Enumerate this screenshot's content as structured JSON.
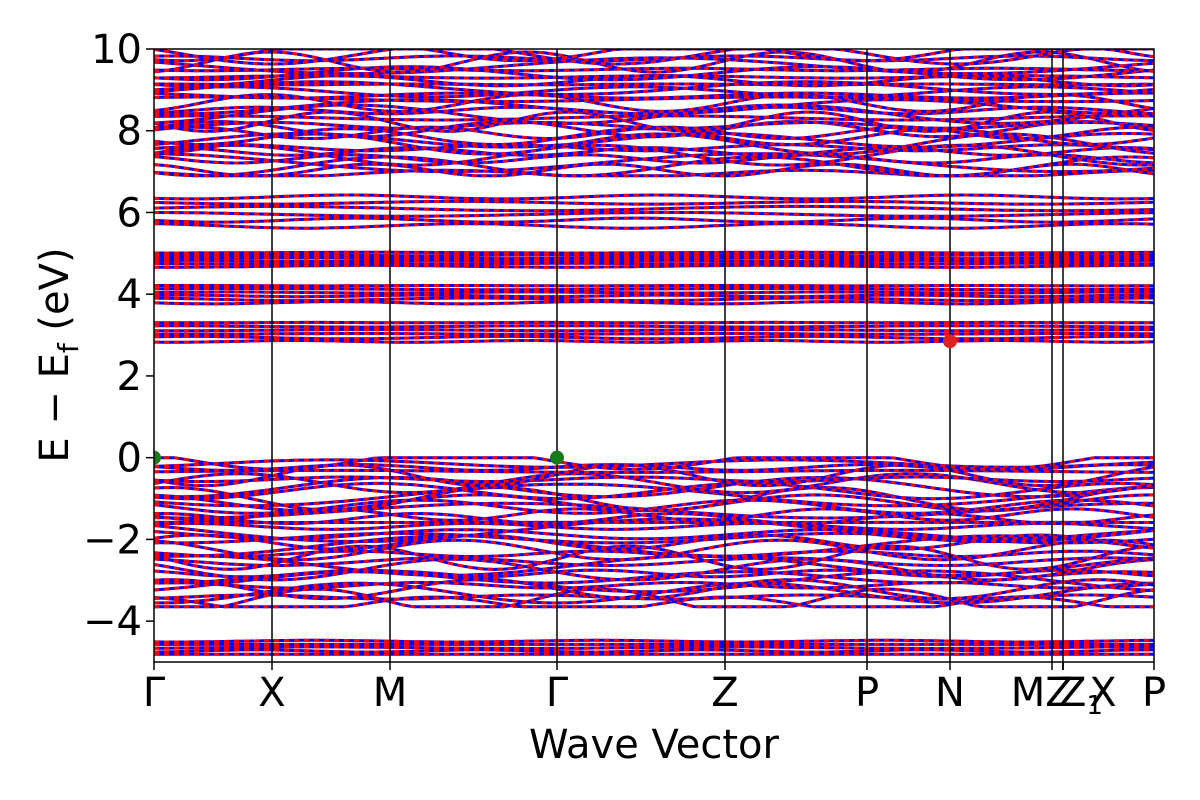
{
  "chart_data": {
    "type": "line",
    "title": "",
    "xlabel": "Wave Vector",
    "ylabel": "E − E",
    "ylabel_subscript": "f",
    "ylabel_unit": "(eV)",
    "ylim": [
      -5,
      10
    ],
    "yticks": [
      {
        "value": 10,
        "label": "10"
      },
      {
        "value": 8,
        "label": "8"
      },
      {
        "value": 6,
        "label": "6"
      },
      {
        "value": 4,
        "label": "4"
      },
      {
        "value": 2,
        "label": "2"
      },
      {
        "value": 0,
        "label": "0"
      },
      {
        "value": -2,
        "label": "−2"
      },
      {
        "value": -4,
        "label": "−4"
      }
    ],
    "kpoints": [
      {
        "label": "Γ",
        "x": 0.0
      },
      {
        "label": "X",
        "x": 0.118
      },
      {
        "label": "M",
        "x": 0.236
      },
      {
        "label": "Γ",
        "x": 0.403
      },
      {
        "label": "Z",
        "x": 0.571
      },
      {
        "label": "P",
        "x": 0.713
      },
      {
        "label": "N",
        "x": 0.796
      },
      {
        "label": "M",
        "x": 0.898
      },
      {
        "label": "Z",
        "x": 0.909
      },
      {
        "label": "Z1",
        "x": 0.909
      },
      {
        "label": "X",
        "x": 0.909
      },
      {
        "label": "P",
        "x": 1.0
      }
    ],
    "band_stripe_colors": [
      "#ff0000",
      "#0000ff"
    ],
    "vbm": [
      {
        "x": 0.0,
        "y": 0.0,
        "color": "#1a7a1a"
      },
      {
        "x": 0.403,
        "y": 0.0,
        "color": "#1a7a1a"
      }
    ],
    "cbm": {
      "x": 0.796,
      "y": 2.85,
      "color": "#dd2222"
    },
    "band_groups": [
      {
        "name": "valence",
        "ymin": -3.65,
        "ymax": 0.0
      },
      {
        "name": "deep",
        "ymin": -4.85,
        "ymax": -4.45
      },
      {
        "name": "cond1",
        "ymin": 2.8,
        "ymax": 3.35
      },
      {
        "name": "cond2",
        "ymin": 3.75,
        "ymax": 4.25
      },
      {
        "name": "cond3",
        "ymin": 4.65,
        "ymax": 5.05
      },
      {
        "name": "cond4",
        "ymin": 5.6,
        "ymax": 6.45
      },
      {
        "name": "cond5",
        "ymin": 6.9,
        "ymax": 10.0
      }
    ]
  }
}
